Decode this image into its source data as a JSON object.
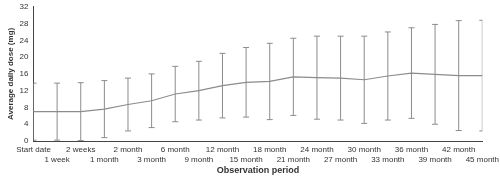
{
  "chart_data": {
    "type": "line",
    "x_label": "Observation period",
    "y_label": "Average daily dose (mg)",
    "categories": [
      "Start date",
      "1 week",
      "2 weeks",
      "1 month",
      "2 month",
      "3 month",
      "6 month",
      "9 month",
      "12 month",
      "15 month",
      "18 month",
      "21 month",
      "24 month",
      "27 month",
      "30 month",
      "33 month",
      "36 month",
      "39 month",
      "42 month",
      "45 month"
    ],
    "values": [
      7.0,
      7.0,
      7.0,
      7.6,
      8.7,
      9.6,
      11.2,
      12.0,
      13.2,
      14.0,
      14.2,
      15.3,
      15.1,
      15.0,
      14.6,
      15.5,
      16.2,
      15.9,
      15.6,
      15.6
    ],
    "errors": [
      6.8,
      6.8,
      6.9,
      6.8,
      6.3,
      6.4,
      6.6,
      7.0,
      7.7,
      8.3,
      9.1,
      9.2,
      9.9,
      10.0,
      10.4,
      10.5,
      10.8,
      11.9,
      13.1,
      13.2
    ],
    "color": "#8c8c8c",
    "marker": "none",
    "ylim": [
      0,
      32
    ],
    "yticks": [
      0,
      4,
      8,
      12,
      16,
      20,
      24,
      28,
      32
    ],
    "grid": false
  }
}
